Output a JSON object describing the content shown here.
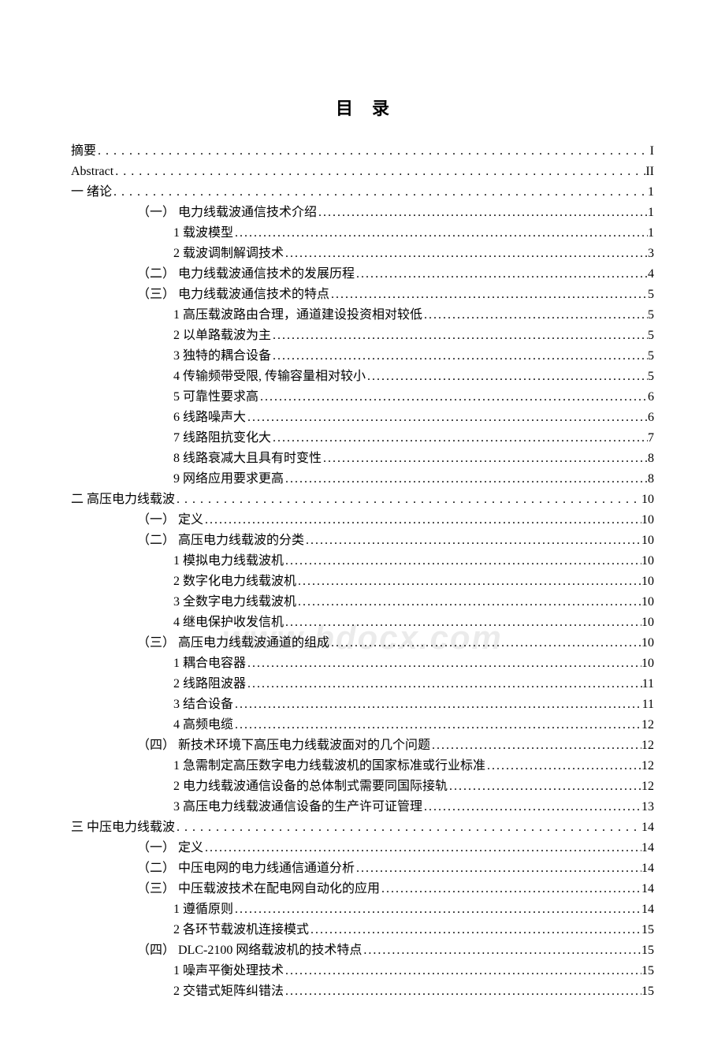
{
  "title": "目录",
  "watermark": "www.bdocx.com",
  "entries": [
    {
      "level": 0,
      "label": "摘要",
      "page": "I",
      "sparse": true
    },
    {
      "level": 0,
      "label": "Abstract",
      "page": "II",
      "sparse": true
    },
    {
      "level": 0,
      "label": "一  绪论",
      "page": "1",
      "sparse": true
    },
    {
      "level": 1,
      "label": "（一）  电力线载波通信技术介绍",
      "page": "1"
    },
    {
      "level": 2,
      "label": "1  载波模型",
      "page": "1"
    },
    {
      "level": 2,
      "label": "2  载波调制解调技术",
      "page": "3"
    },
    {
      "level": 1,
      "label": "（二）  电力线载波通信技术的发展历程",
      "page": "4"
    },
    {
      "level": 1,
      "label": "（三）  电力线载波通信技术的特点",
      "page": "5"
    },
    {
      "level": 2,
      "label": "1  高压载波路由合理，通道建设投资相对较低",
      "page": "5"
    },
    {
      "level": 2,
      "label": "2  以单路载波为主",
      "page": "5"
    },
    {
      "level": 2,
      "label": "3  独特的耦合设备",
      "page": "5"
    },
    {
      "level": 2,
      "label": "4  传输频带受限, 传输容量相对较小",
      "page": "5"
    },
    {
      "level": 2,
      "label": "5  可靠性要求高",
      "page": "6"
    },
    {
      "level": 2,
      "label": "6  线路噪声大",
      "page": "6"
    },
    {
      "level": 2,
      "label": "7  线路阻抗变化大",
      "page": "7"
    },
    {
      "level": 2,
      "label": "8  线路衰减大且具有时变性",
      "page": "8"
    },
    {
      "level": 2,
      "label": "9  网络应用要求更高",
      "page": "8"
    },
    {
      "level": 0,
      "label": "二  高压电力线载波",
      "page": "10",
      "sparse": true
    },
    {
      "level": 1,
      "label": "（一）  定义",
      "page": "10"
    },
    {
      "level": 1,
      "label": "（二）  高压电力线载波的分类",
      "page": "10"
    },
    {
      "level": 2,
      "label": "1  模拟电力线载波机",
      "page": "10"
    },
    {
      "level": 2,
      "label": "2  数字化电力线载波机",
      "page": "10"
    },
    {
      "level": 2,
      "label": "3  全数字电力线载波机",
      "page": "10"
    },
    {
      "level": 2,
      "label": "4  继电保护收发信机",
      "page": "10"
    },
    {
      "level": 1,
      "label": "（三）  高压电力线载波通道的组成",
      "page": "10"
    },
    {
      "level": 2,
      "label": "1  耦合电容器",
      "page": "10"
    },
    {
      "level": 2,
      "label": "2  线路阻波器",
      "page": "11"
    },
    {
      "level": 2,
      "label": "3  结合设备",
      "page": "11"
    },
    {
      "level": 2,
      "label": "4  高频电缆",
      "page": "12"
    },
    {
      "level": 1,
      "label": "（四）  新技术环境下高压电力线载波面对的几个问题",
      "page": "12"
    },
    {
      "level": 2,
      "label": "1  急需制定高压数字电力线载波机的国家标准或行业标准",
      "page": "12"
    },
    {
      "level": 2,
      "label": "2  电力线载波通信设备的总体制式需要同国际接轨",
      "page": "12"
    },
    {
      "level": 2,
      "label": "3  高压电力线载波通信设备的生产许可证管理",
      "page": "13"
    },
    {
      "level": 0,
      "label": "三  中压电力线载波",
      "page": "14",
      "sparse": true
    },
    {
      "level": 1,
      "label": "（一）  定义",
      "page": "14"
    },
    {
      "level": 1,
      "label": "（二）  中压电网的电力线通信通道分析",
      "page": "14"
    },
    {
      "level": 1,
      "label": "（三）  中压载波技术在配电网自动化的应用",
      "page": "14"
    },
    {
      "level": 2,
      "label": "1  遵循原则",
      "page": "14"
    },
    {
      "level": 2,
      "label": "2  各环节载波机连接模式",
      "page": "15"
    },
    {
      "level": 1,
      "label": "（四）  DLC-2100 网络载波机的技术特点",
      "page": "15"
    },
    {
      "level": 2,
      "label": "1  噪声平衡处理技术",
      "page": "15"
    },
    {
      "level": 2,
      "label": "2  交错式矩阵纠错法",
      "page": "15"
    }
  ]
}
